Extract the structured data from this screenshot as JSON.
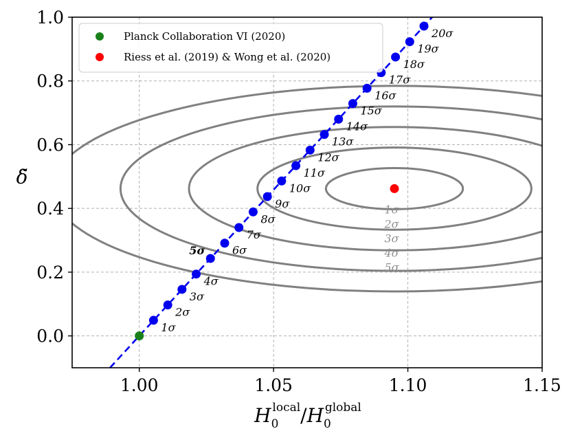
{
  "chart_data": {
    "type": "scatter",
    "xlabel": "H0local/H0global",
    "xlabel_parts": {
      "base1": "H",
      "sub1": "0",
      "sup1": "local",
      "sep": "/",
      "base2": "H",
      "sub2": "0",
      "sup2": "global"
    },
    "ylabel": "δ̃",
    "xlim": [
      0.975,
      1.15
    ],
    "ylim": [
      -0.1,
      1.0
    ],
    "grid": true,
    "x_ticks": [
      1.0,
      1.05,
      1.1,
      1.15
    ],
    "x_tick_labels": [
      "1.00",
      "1.05",
      "1.10",
      "1.15"
    ],
    "y_ticks": [
      0.0,
      0.2,
      0.4,
      0.6,
      0.8,
      1.0
    ],
    "y_tick_labels": [
      "0.0",
      "0.2",
      "0.4",
      "0.6",
      "0.8",
      "1.0"
    ],
    "legend": {
      "position": "top-left",
      "entries": [
        {
          "label": "Planck Collaboration VI (2020)",
          "color": "#1a801a"
        },
        {
          "label": "Riess et al. (2019) & Wong et al. (2020)",
          "color": "#ff0000"
        }
      ]
    },
    "planck_point": {
      "x": 1.0,
      "y": 0.0,
      "color": "#1a801a"
    },
    "riess_point": {
      "x": 1.095,
      "y": 0.462,
      "color": "#ff0000"
    },
    "line": {
      "slope": 9.17,
      "x0": 1.0,
      "y0": 0.0,
      "color": "#0000ee",
      "style": "dashed"
    },
    "sigma_points": {
      "color": "#0000ee",
      "x": [
        1.0053,
        1.0106,
        1.0159,
        1.0212,
        1.0265,
        1.0318,
        1.0371,
        1.0424,
        1.0477,
        1.053,
        1.0583,
        1.0636,
        1.0689,
        1.0742,
        1.0795,
        1.0848,
        1.0901,
        1.0954,
        1.1007,
        1.106
      ],
      "y": [
        0.049,
        0.097,
        0.146,
        0.194,
        0.243,
        0.291,
        0.34,
        0.389,
        0.437,
        0.486,
        0.534,
        0.583,
        0.632,
        0.68,
        0.729,
        0.777,
        0.826,
        0.875,
        0.923,
        0.972
      ],
      "labels": [
        "1σ",
        "2σ",
        "3σ",
        "4σ",
        "5σ",
        "6σ",
        "7σ",
        "8σ",
        "9σ",
        "10σ",
        "11σ",
        "12σ",
        "13σ",
        "14σ",
        "15σ",
        "16σ",
        "17σ",
        "18σ",
        "19σ",
        "20σ"
      ]
    },
    "contours": {
      "color": "#808080",
      "center": {
        "x": 1.095,
        "y": 0.462
      },
      "rx": [
        0.0255,
        0.051,
        0.0765,
        0.102,
        0.1275
      ],
      "ry": [
        0.0645,
        0.129,
        0.1935,
        0.258,
        0.3225
      ],
      "labels": [
        "1σ",
        "2σ",
        "3σ",
        "4σ",
        "5σ"
      ]
    }
  }
}
